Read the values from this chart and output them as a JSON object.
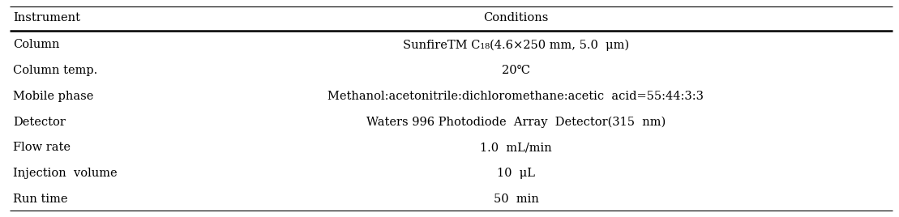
{
  "header": [
    "Instrument",
    "Conditions"
  ],
  "rows": [
    [
      "Column",
      "SunfireTM C₁₈(4.6×250 mm, 5.0  μm)"
    ],
    [
      "Column temp.",
      "20℃"
    ],
    [
      "Mobile phase",
      "Methanol:acetonitrile:dichloromethane:acetic  acid=55:44:3:3"
    ],
    [
      "Detector",
      "Waters 996 Photodiode  Array  Detector(315  nm)"
    ],
    [
      "Flow rate",
      "1.0  mL/min"
    ],
    [
      "Injection  volume",
      "10  μL"
    ],
    [
      "Run time",
      "50  min"
    ]
  ],
  "bg_color": "#ffffff",
  "text_color": "#000000",
  "font_size": 10.5,
  "header_font_size": 10.5,
  "fig_width": 11.09,
  "fig_height": 2.68,
  "dpi": 100
}
